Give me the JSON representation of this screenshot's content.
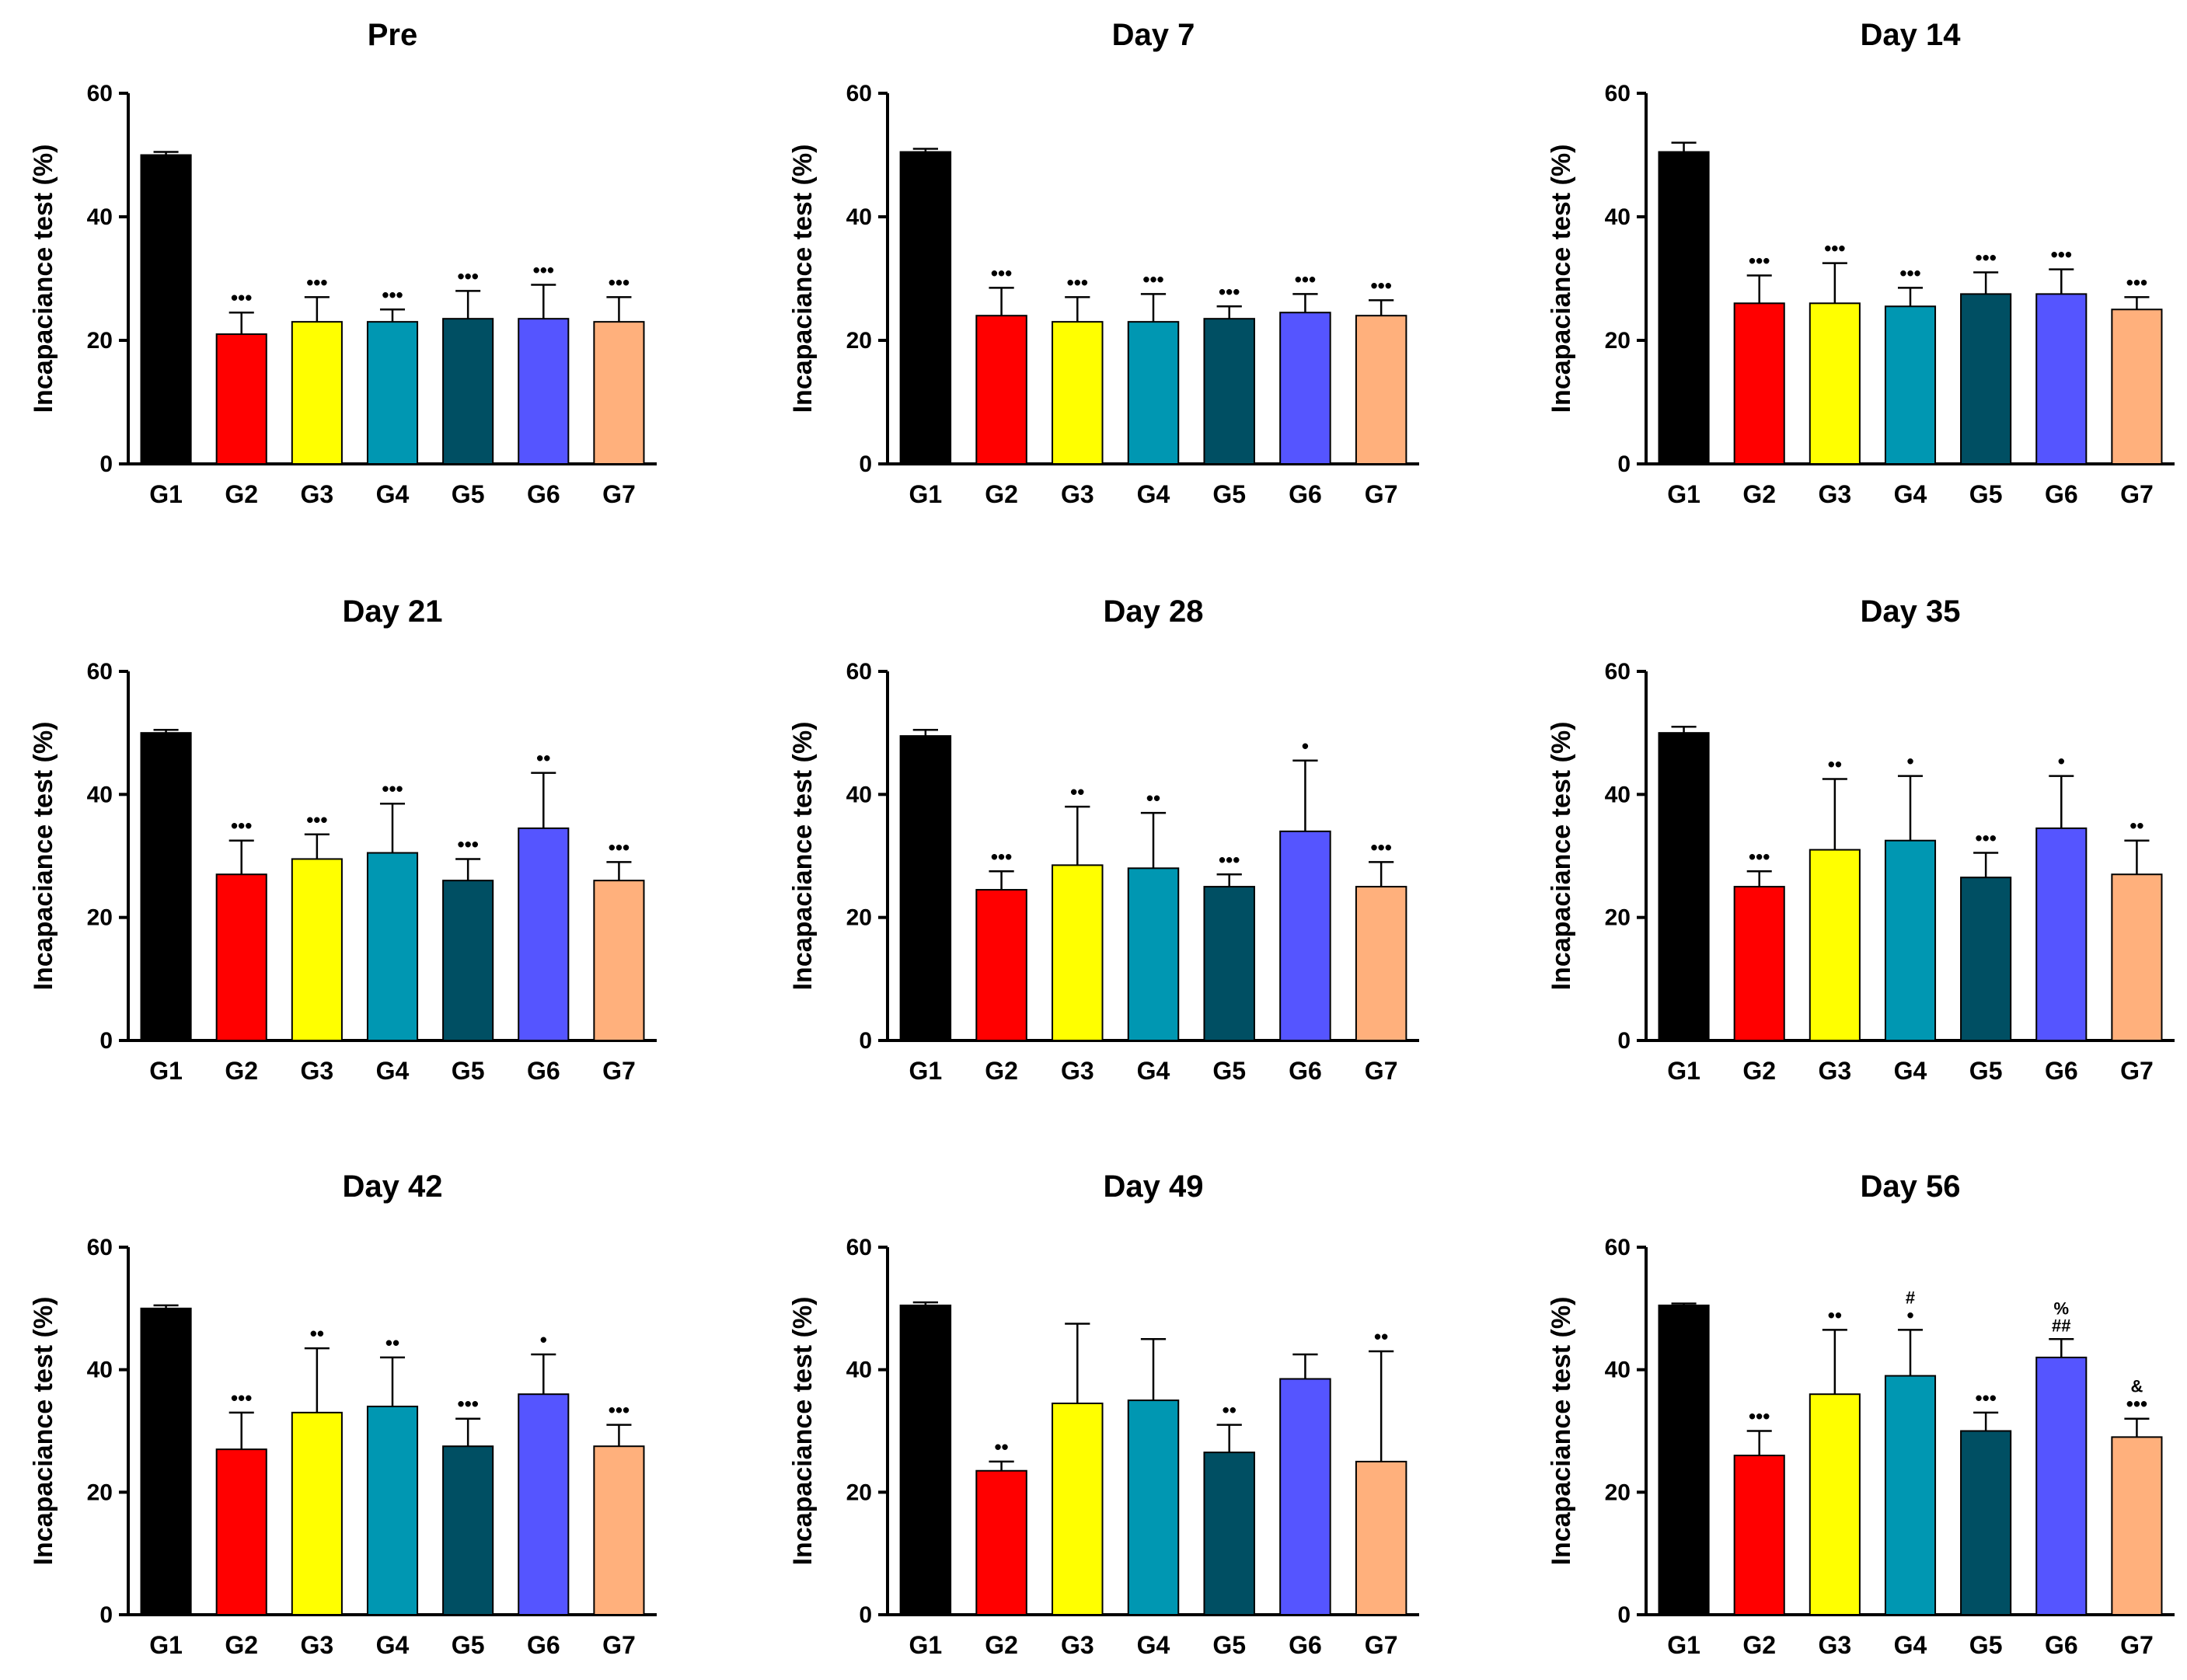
{
  "figure": {
    "ylabel": "Incapaciance test (%)"
  },
  "chart_data": [
    {
      "type": "bar",
      "title": "Pre",
      "ylabel": "Incapaciance test (%)",
      "ylim": [
        0,
        60
      ],
      "yticks": [
        0,
        20,
        40,
        60
      ],
      "categories": [
        "G1",
        "G2",
        "G3",
        "G4",
        "G5",
        "G6",
        "G7"
      ],
      "colors": [
        "#000000",
        "#ff0000",
        "#ffff00",
        "#0097b2",
        "#004f63",
        "#5555ff",
        "#ffb07c"
      ],
      "values": [
        50,
        21,
        23,
        23,
        23.5,
        23.5,
        23
      ],
      "errors": [
        0.5,
        3.5,
        4,
        2,
        4.5,
        5.5,
        4
      ],
      "annotations": [
        "",
        "•••",
        "•••",
        "•••",
        "•••",
        "•••",
        "•••"
      ]
    },
    {
      "type": "bar",
      "title": "Day 7",
      "ylabel": "Incapaciance test (%)",
      "ylim": [
        0,
        60
      ],
      "yticks": [
        0,
        20,
        40,
        60
      ],
      "categories": [
        "G1",
        "G2",
        "G3",
        "G4",
        "G5",
        "G6",
        "G7"
      ],
      "colors": [
        "#000000",
        "#ff0000",
        "#ffff00",
        "#0097b2",
        "#004f63",
        "#5555ff",
        "#ffb07c"
      ],
      "values": [
        50.5,
        24,
        23,
        23,
        23.5,
        24.5,
        24
      ],
      "errors": [
        0.5,
        4.5,
        4,
        4.5,
        2,
        3,
        2.5
      ],
      "annotations": [
        "",
        "•••",
        "•••",
        "•••",
        "•••",
        "•••",
        "•••"
      ]
    },
    {
      "type": "bar",
      "title": "Day 14",
      "ylabel": "Incapaciance test (%)",
      "ylim": [
        0,
        60
      ],
      "yticks": [
        0,
        20,
        40,
        60
      ],
      "categories": [
        "G1",
        "G2",
        "G3",
        "G4",
        "G5",
        "G6",
        "G7"
      ],
      "colors": [
        "#000000",
        "#ff0000",
        "#ffff00",
        "#0097b2",
        "#004f63",
        "#5555ff",
        "#ffb07c"
      ],
      "values": [
        50.5,
        26,
        26,
        25.5,
        27.5,
        27.5,
        25
      ],
      "errors": [
        1.5,
        4.5,
        6.5,
        3,
        3.5,
        4,
        2
      ],
      "annotations": [
        "",
        "•••",
        "•••",
        "•••",
        "•••",
        "•••",
        "•••"
      ]
    },
    {
      "type": "bar",
      "title": "Day 21",
      "ylabel": "Incapaciance test (%)",
      "ylim": [
        0,
        60
      ],
      "yticks": [
        0,
        20,
        40,
        60
      ],
      "categories": [
        "G1",
        "G2",
        "G3",
        "G4",
        "G5",
        "G6",
        "G7"
      ],
      "colors": [
        "#000000",
        "#ff0000",
        "#ffff00",
        "#0097b2",
        "#004f63",
        "#5555ff",
        "#ffb07c"
      ],
      "values": [
        50,
        27,
        29.5,
        30.5,
        26,
        34.5,
        26
      ],
      "errors": [
        0.5,
        5.5,
        4,
        8,
        3.5,
        9,
        3
      ],
      "annotations": [
        "",
        "•••",
        "•••",
        "•••",
        "•••",
        "••",
        "•••"
      ]
    },
    {
      "type": "bar",
      "title": "Day 28",
      "ylabel": "Incapaciance test (%)",
      "ylim": [
        0,
        60
      ],
      "yticks": [
        0,
        20,
        40,
        60
      ],
      "categories": [
        "G1",
        "G2",
        "G3",
        "G4",
        "G5",
        "G6",
        "G7"
      ],
      "colors": [
        "#000000",
        "#ff0000",
        "#ffff00",
        "#0097b2",
        "#004f63",
        "#5555ff",
        "#ffb07c"
      ],
      "values": [
        49.5,
        24.5,
        28.5,
        28,
        25,
        34,
        25
      ],
      "errors": [
        1,
        3,
        9.5,
        9,
        2,
        11.5,
        4
      ],
      "annotations": [
        "",
        "•••",
        "••",
        "••",
        "•••",
        "•",
        "•••"
      ]
    },
    {
      "type": "bar",
      "title": "Day 35",
      "ylabel": "Incapaciance test (%)",
      "ylim": [
        0,
        60
      ],
      "yticks": [
        0,
        20,
        40,
        60
      ],
      "categories": [
        "G1",
        "G2",
        "G3",
        "G4",
        "G5",
        "G6",
        "G7"
      ],
      "colors": [
        "#000000",
        "#ff0000",
        "#ffff00",
        "#0097b2",
        "#004f63",
        "#5555ff",
        "#ffb07c"
      ],
      "values": [
        50,
        25,
        31,
        32.5,
        26.5,
        34.5,
        27
      ],
      "errors": [
        1,
        2.5,
        11.5,
        10.5,
        4,
        8.5,
        5.5
      ],
      "annotations": [
        "",
        "•••",
        "••",
        "•",
        "•••",
        "•",
        "••"
      ]
    },
    {
      "type": "bar",
      "title": "Day 42",
      "ylabel": "Incapaciance test (%)",
      "ylim": [
        0,
        60
      ],
      "yticks": [
        0,
        20,
        40,
        60
      ],
      "categories": [
        "G1",
        "G2",
        "G3",
        "G4",
        "G5",
        "G6",
        "G7"
      ],
      "colors": [
        "#000000",
        "#ff0000",
        "#ffff00",
        "#0097b2",
        "#004f63",
        "#5555ff",
        "#ffb07c"
      ],
      "values": [
        50,
        27,
        33,
        34,
        27.5,
        36,
        27.5
      ],
      "errors": [
        0.5,
        6,
        10.5,
        8,
        4.5,
        6.5,
        3.5
      ],
      "annotations": [
        "",
        "•••",
        "••",
        "••",
        "•••",
        "•",
        "•••"
      ]
    },
    {
      "type": "bar",
      "title": "Day 49",
      "ylabel": "Incapaciance test (%)",
      "ylim": [
        0,
        60
      ],
      "yticks": [
        0,
        20,
        40,
        60
      ],
      "categories": [
        "G1",
        "G2",
        "G3",
        "G4",
        "G5",
        "G6",
        "G7"
      ],
      "colors": [
        "#000000",
        "#ff0000",
        "#ffff00",
        "#0097b2",
        "#004f63",
        "#5555ff",
        "#ffb07c"
      ],
      "values": [
        50.5,
        23.5,
        34.5,
        35,
        26.5,
        38.5,
        25
      ],
      "errors": [
        0.5,
        1.5,
        13,
        10,
        4.5,
        4,
        18
      ],
      "annotations": [
        "",
        "••",
        "",
        "",
        "••",
        "",
        "••"
      ]
    },
    {
      "type": "bar",
      "title": "Day 56",
      "ylabel": "Incapaciance test (%)",
      "ylim": [
        0,
        60
      ],
      "yticks": [
        0,
        20,
        40,
        60
      ],
      "categories": [
        "G1",
        "G2",
        "G3",
        "G4",
        "G5",
        "G6",
        "G7"
      ],
      "colors": [
        "#000000",
        "#ff0000",
        "#ffff00",
        "#0097b2",
        "#004f63",
        "#5555ff",
        "#ffb07c"
      ],
      "values": [
        50.5,
        26,
        36,
        39,
        30,
        42,
        29
      ],
      "errors": [
        0.3,
        4,
        10.5,
        7.5,
        3,
        3,
        3
      ],
      "annotations": [
        "",
        "•••",
        "••",
        "•",
        "•••",
        "",
        "•••"
      ],
      "extra_annotations": [
        "",
        "",
        "",
        "#",
        "",
        "##",
        "&"
      ],
      "extra_annotations_2": [
        "",
        "",
        "",
        "",
        "",
        "%",
        ""
      ]
    }
  ]
}
